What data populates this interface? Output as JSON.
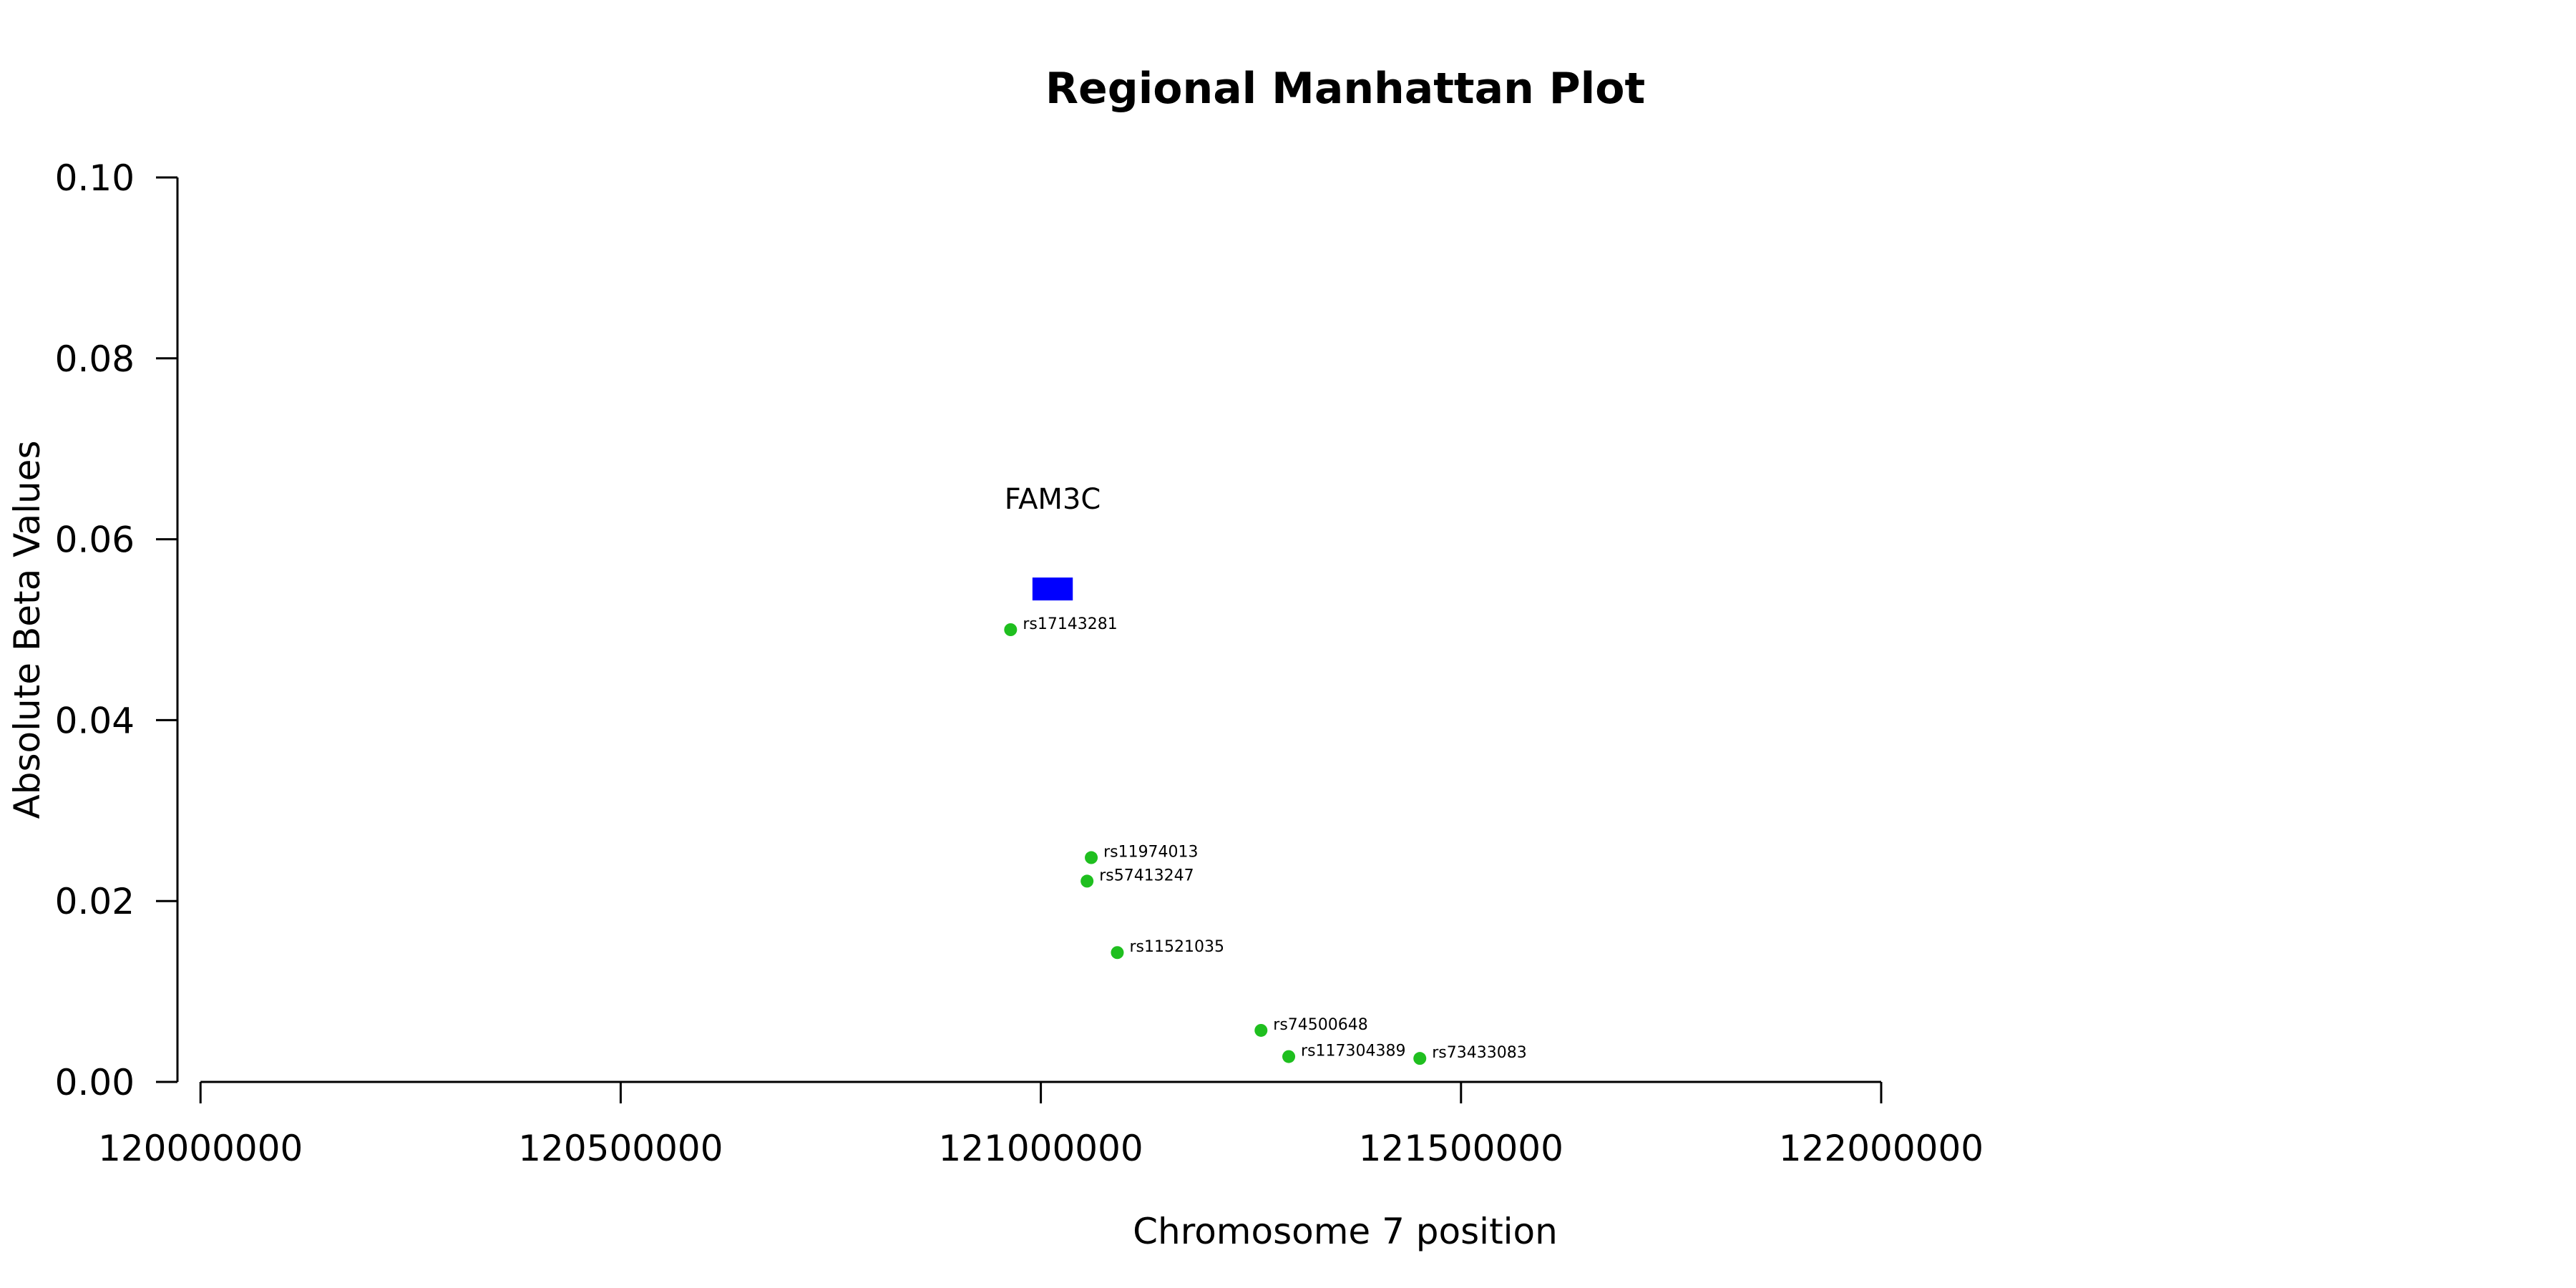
{
  "chart_data": {
    "type": "scatter",
    "title": "Regional Manhattan Plot",
    "xlabel": "Chromosome 7 position",
    "ylabel": "Absolute Beta Values",
    "xlim": [
      119970000,
      122350000
    ],
    "ylim": [
      0,
      0.1
    ],
    "x_ticks": [
      120000000,
      120500000,
      121000000,
      121500000,
      122000000
    ],
    "x_tick_labels": [
      "120000000",
      "120500000",
      "121000000",
      "121500000",
      "122000000"
    ],
    "y_ticks": [
      0,
      0.02,
      0.04,
      0.06,
      0.08,
      0.1
    ],
    "y_tick_labels": [
      "0.00",
      "0.02",
      "0.04",
      "0.06",
      "0.08",
      "0.10"
    ],
    "grid": false,
    "point_color": "#1fbf1f",
    "points": [
      {
        "label": "rs17143281",
        "x": 120964000,
        "y": 0.05
      },
      {
        "label": "rs11974013",
        "x": 121060000,
        "y": 0.0248
      },
      {
        "label": "rs57413247",
        "x": 121055000,
        "y": 0.0222
      },
      {
        "label": "rs11521035",
        "x": 121091000,
        "y": 0.0143
      },
      {
        "label": "rs74500648",
        "x": 121262000,
        "y": 0.0057
      },
      {
        "label": "rs117304389",
        "x": 121295000,
        "y": 0.0028
      },
      {
        "label": "rs73433083",
        "x": 121451000,
        "y": 0.0026
      }
    ],
    "genes": [
      {
        "name": "FAM3C",
        "start": 120990000,
        "end": 121038000,
        "y": 0.0545,
        "color": "#0000ff"
      }
    ]
  }
}
